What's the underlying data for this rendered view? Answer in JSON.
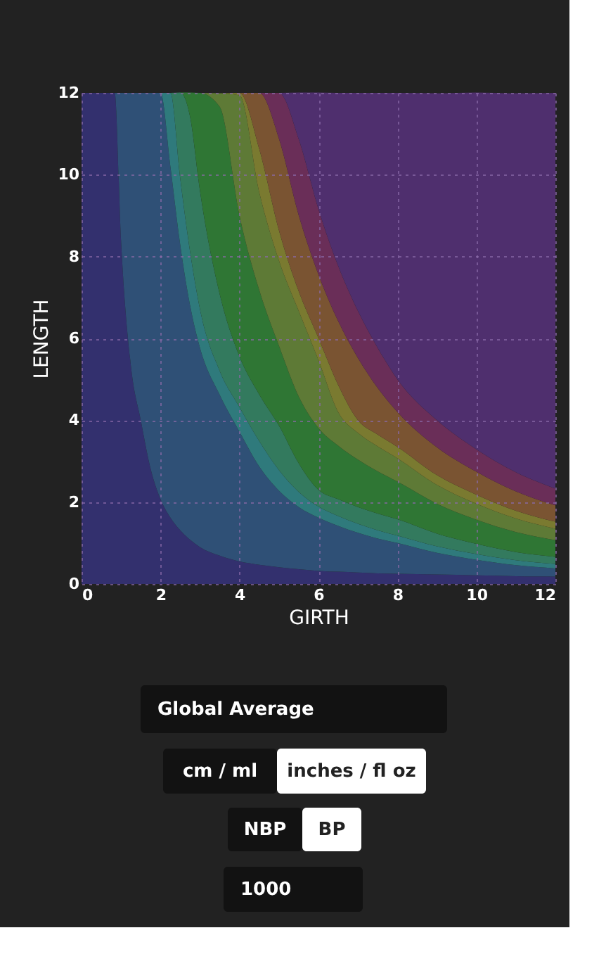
{
  "chart_data": {
    "type": "area",
    "stacked": true,
    "xlabel": "GIRTH",
    "ylabel": "LENGTH",
    "xlim": [
      0,
      12
    ],
    "ylim": [
      0,
      12
    ],
    "xticks": [
      0,
      2,
      4,
      6,
      8,
      10,
      12
    ],
    "yticks": [
      0,
      2,
      4,
      6,
      8,
      10,
      12
    ],
    "grid": true,
    "x": [
      0,
      0.5,
      0.84,
      1,
      1.25,
      1.5,
      1.75,
      2,
      2.25,
      2.5,
      2.75,
      3,
      3.5,
      4,
      4.5,
      5,
      5.5,
      6,
      6.5,
      7,
      7.5,
      8,
      9,
      10,
      11,
      12
    ],
    "series": [
      {
        "color": "#33306e",
        "values": [
          12,
          12,
          12,
          8.4,
          5.33,
          4.0,
          2.81,
          2.07,
          1.62,
          1.31,
          1.08,
          0.9,
          0.69,
          0.55,
          0.47,
          0.41,
          0.36,
          0.32,
          0.3,
          0.28,
          0.26,
          0.25,
          0.23,
          0.21,
          0.19,
          0.18
        ]
      },
      {
        "color": "#2f5076",
        "values": [
          0,
          0,
          0,
          3.6,
          6.67,
          8.0,
          9.19,
          9.93,
          8.58,
          6.97,
          5.72,
          4.87,
          3.93,
          3.17,
          2.4,
          1.87,
          1.52,
          1.3,
          1.12,
          0.97,
          0.85,
          0.75,
          0.53,
          0.38,
          0.27,
          0.2
        ]
      },
      {
        "color": "#2f7a7c",
        "values": [
          0,
          0,
          0,
          0,
          0,
          0,
          0,
          0,
          1.8,
          1.62,
          1.31,
          0.94,
          0.58,
          0.6,
          0.62,
          0.5,
          0.37,
          0.27,
          0.24,
          0.22,
          0.2,
          0.18,
          0.16,
          0.14,
          0.12,
          0.11
        ]
      },
      {
        "color": "#337a5e",
        "values": [
          0,
          0,
          0,
          0,
          0,
          0,
          0,
          0,
          0,
          2.11,
          3.3,
          2.89,
          1.88,
          1.24,
          1.14,
          1.09,
          0.7,
          0.41,
          0.41,
          0.41,
          0.41,
          0.4,
          0.31,
          0.25,
          0.2,
          0.17
        ]
      },
      {
        "color": "#2f7634",
        "values": [
          0,
          0,
          0,
          0,
          0,
          0,
          0,
          0,
          0,
          0,
          0.6,
          2.4,
          4.58,
          3.44,
          2.55,
          1.95,
          1.63,
          1.51,
          1.31,
          1.16,
          1.03,
          0.92,
          0.73,
          0.59,
          0.49,
          0.41
        ]
      },
      {
        "color": "#5e7a36",
        "values": [
          0,
          0,
          0,
          0,
          0,
          0,
          0,
          0,
          0,
          0,
          0,
          0,
          0.33,
          2.94,
          2.39,
          2.08,
          2.09,
          1.66,
          0.82,
          0.65,
          0.61,
          0.57,
          0.46,
          0.39,
          0.33,
          0.28
        ]
      },
      {
        "color": "#7a7a30",
        "values": [
          0,
          0,
          0,
          0,
          0,
          0,
          0,
          0,
          0,
          0,
          0,
          0,
          0,
          0.06,
          1.06,
          0.74,
          0.48,
          0.54,
          0.66,
          0.31,
          0.29,
          0.28,
          0.24,
          0.22,
          0.19,
          0.17
        ]
      },
      {
        "color": "#7a5432",
        "values": [
          0,
          0,
          0,
          0,
          0,
          0,
          0,
          0,
          0,
          0,
          0,
          0,
          0,
          0,
          1.37,
          2.24,
          1.86,
          1.55,
          1.56,
          1.52,
          1.14,
          0.85,
          0.68,
          0.56,
          0.47,
          0.4
        ]
      },
      {
        "color": "#6a2e58",
        "values": [
          0,
          0,
          0,
          0,
          0,
          0,
          0,
          0,
          0,
          0,
          0,
          0,
          0,
          0,
          0,
          1.12,
          1.86,
          1.6,
          1.35,
          1.15,
          0.98,
          0.8,
          0.66,
          0.55,
          0.47,
          0.41
        ]
      },
      {
        "color": "#4f2f6e",
        "values": [
          0,
          0,
          0,
          0,
          0,
          0,
          0,
          0,
          0,
          0,
          0,
          0,
          0,
          0,
          0,
          0,
          1.14,
          2.85,
          4.23,
          5.33,
          6.23,
          7.0,
          7.99,
          8.72,
          9.26,
          9.67
        ]
      }
    ],
    "annotations": [
      "Global Average",
      "cm / ml",
      "inches / fl oz",
      "NBP",
      "BP",
      "1000"
    ]
  }
}
